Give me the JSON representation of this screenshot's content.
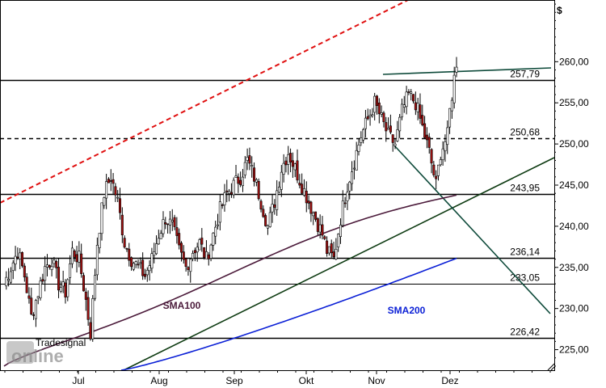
{
  "chart_data": {
    "type": "candlestick",
    "currency_label": "$",
    "y_ticks": [
      "260,00",
      "255,00",
      "250,00",
      "245,00",
      "240,00",
      "235,00",
      "230,00",
      "225,00"
    ],
    "y_tick_values": [
      260,
      255,
      250,
      245,
      240,
      235,
      230,
      225
    ],
    "x_ticks": [
      "Jul",
      "Aug",
      "Sep",
      "Okt",
      "Nov",
      "Dez"
    ],
    "ylim": [
      222.5,
      267.5
    ],
    "horizontal_levels": [
      {
        "label": "257,79",
        "value": 257.79,
        "style": "solid"
      },
      {
        "label": "250,68",
        "value": 250.68,
        "style": "dashed"
      },
      {
        "label": "243,95",
        "value": 243.95,
        "style": "solid"
      },
      {
        "label": "236,14",
        "value": 236.14,
        "style": "solid"
      },
      {
        "label": "233,05",
        "value": 233.05,
        "style": "solid-thin"
      },
      {
        "label": "226,42",
        "value": 226.42,
        "style": "solid"
      }
    ],
    "series": [
      {
        "name": "SMA100",
        "color": "#4b1a3a"
      },
      {
        "name": "SMA200",
        "color": "#0a1fd6"
      }
    ],
    "colors": {
      "up": "#ffffff",
      "down": "#a01010",
      "trend_red": "#e01010",
      "trend_green": "#0e3b12",
      "trend_teal": "#0e4a3a"
    },
    "watermark": "Tradesignal online"
  }
}
